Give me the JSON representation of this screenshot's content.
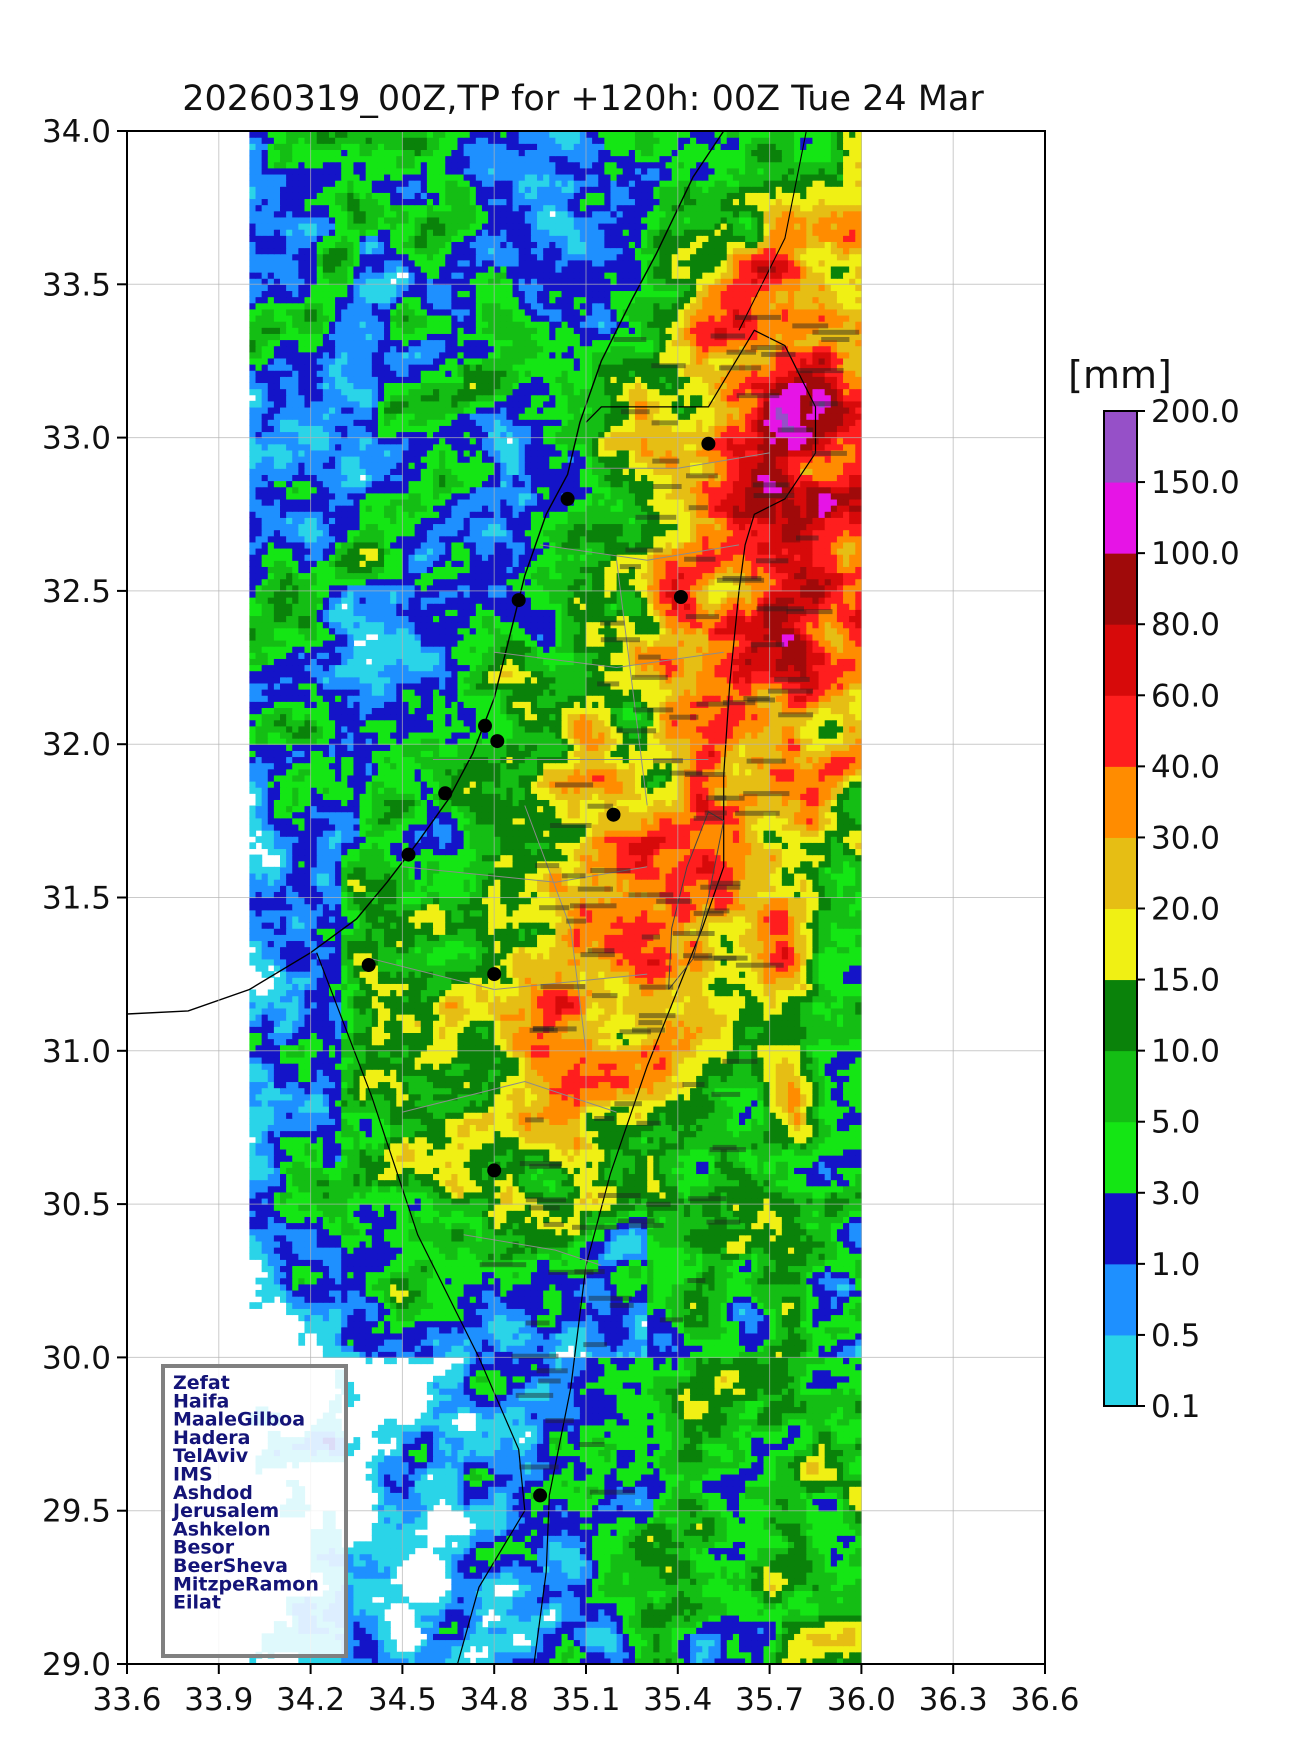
{
  "title": "20260319_00Z,TP for +120h: 00Z Tue 24 Mar",
  "colorbar": {
    "unit": "[mm]",
    "levels": [
      "0.1",
      "0.5",
      "1.0",
      "3.0",
      "5.0",
      "10.0",
      "15.0",
      "20.0",
      "30.0",
      "40.0",
      "60.0",
      "80.0",
      "100.0",
      "150.0",
      "200.0"
    ],
    "colors": [
      "#2ad4e8",
      "#1e90ff",
      "#1414c8",
      "#14e614",
      "#14be14",
      "#0a820a",
      "#f0f014",
      "#e6be14",
      "#ff8c00",
      "#ff1e1e",
      "#d70a0a",
      "#a00a0a",
      "#e614e6",
      "#9650c8"
    ]
  },
  "axes": {
    "x_ticks": [
      "33.6",
      "33.9",
      "34.2",
      "34.5",
      "34.8",
      "35.1",
      "35.4",
      "35.7",
      "36.0",
      "36.3",
      "36.6"
    ],
    "y_ticks": [
      "34.0",
      "33.5",
      "33.0",
      "32.5",
      "32.0",
      "31.5",
      "31.0",
      "30.5",
      "30.0",
      "29.5",
      "29.0"
    ],
    "xlim": [
      33.6,
      36.6
    ],
    "ylim": [
      29.0,
      34.0
    ],
    "grid": true
  },
  "legend": {
    "stations": [
      "Zefat",
      "Haifa",
      "MaaleGilboa",
      "Hadera",
      "TelAviv",
      "IMS",
      "Ashdod",
      "Jerusalem",
      "Ashkelon",
      "Besor",
      "BeerSheva",
      "MitzpeRamon",
      "Eilat"
    ]
  },
  "stations_points": [
    {
      "lon": 35.5,
      "lat": 32.98
    },
    {
      "lon": 35.04,
      "lat": 32.8
    },
    {
      "lon": 35.41,
      "lat": 32.48
    },
    {
      "lon": 34.88,
      "lat": 32.47
    },
    {
      "lon": 34.77,
      "lat": 32.06
    },
    {
      "lon": 34.81,
      "lat": 32.01
    },
    {
      "lon": 34.64,
      "lat": 31.84
    },
    {
      "lon": 35.19,
      "lat": 31.77
    },
    {
      "lon": 34.52,
      "lat": 31.64
    },
    {
      "lon": 34.39,
      "lat": 31.28
    },
    {
      "lon": 34.8,
      "lat": 31.25
    },
    {
      "lon": 34.8,
      "lat": 30.61
    },
    {
      "lon": 34.95,
      "lat": 29.55
    }
  ]
}
